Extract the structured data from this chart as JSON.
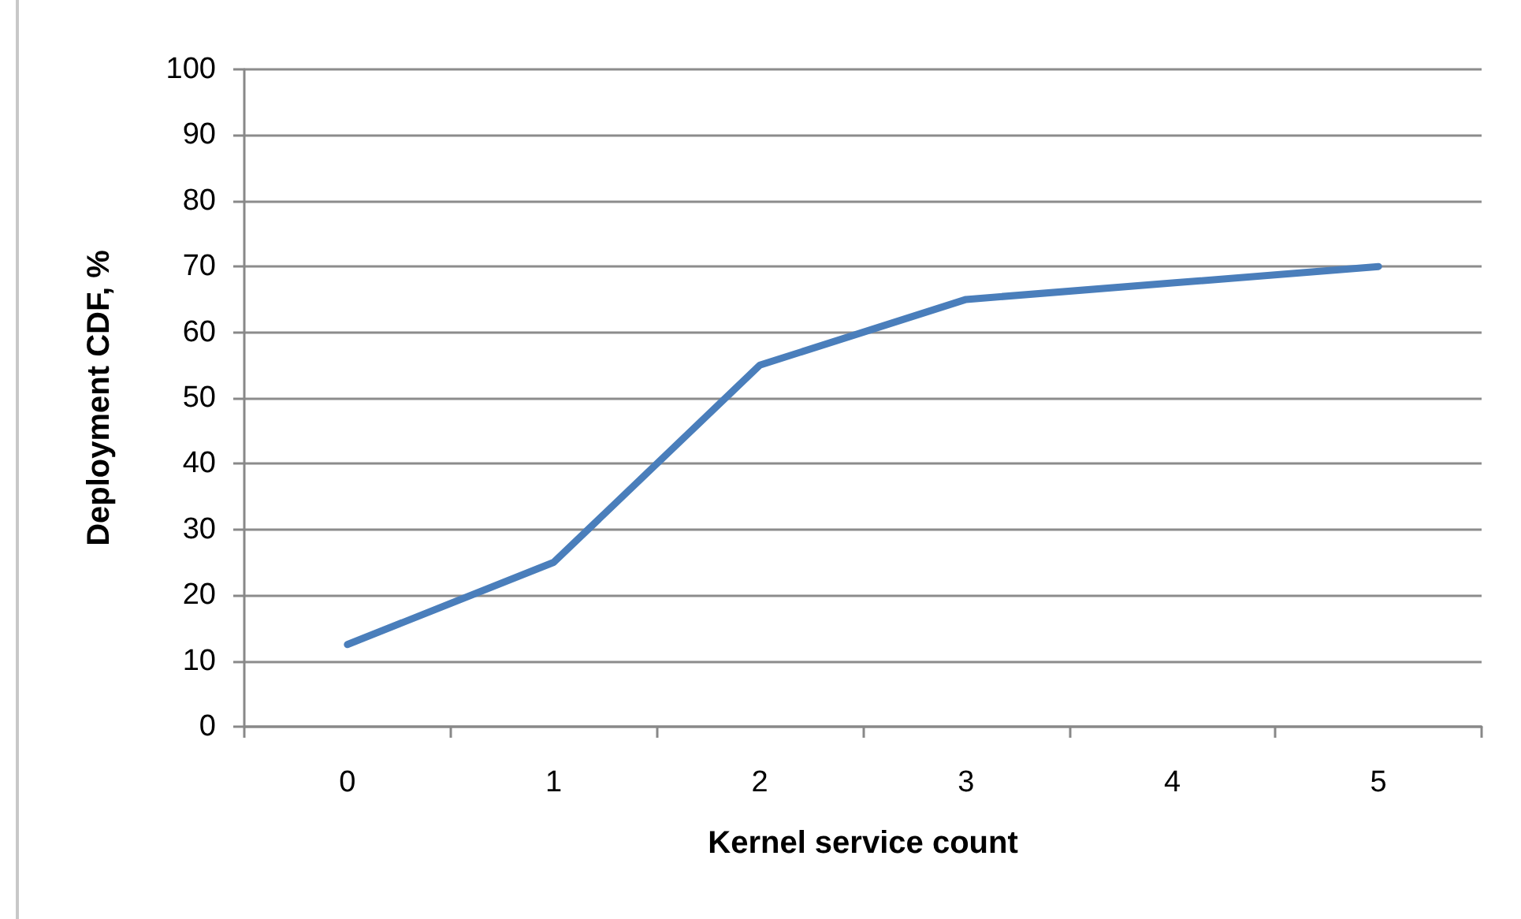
{
  "chart_data": {
    "type": "line",
    "xlabel": "Kernel service count",
    "ylabel": "Deployment CDF, %",
    "categories": [
      "0",
      "1",
      "2",
      "3",
      "4",
      "5"
    ],
    "series": [
      {
        "color": "#4a7ebb",
        "values": [
          12.5,
          25,
          55,
          65,
          67.5,
          70
        ]
      }
    ],
    "ylim": [
      0,
      100
    ],
    "yticks": [
      0,
      10,
      20,
      30,
      40,
      50,
      60,
      70,
      80,
      90,
      100
    ],
    "grid": "y",
    "marker": "none",
    "line_style": "solid"
  }
}
